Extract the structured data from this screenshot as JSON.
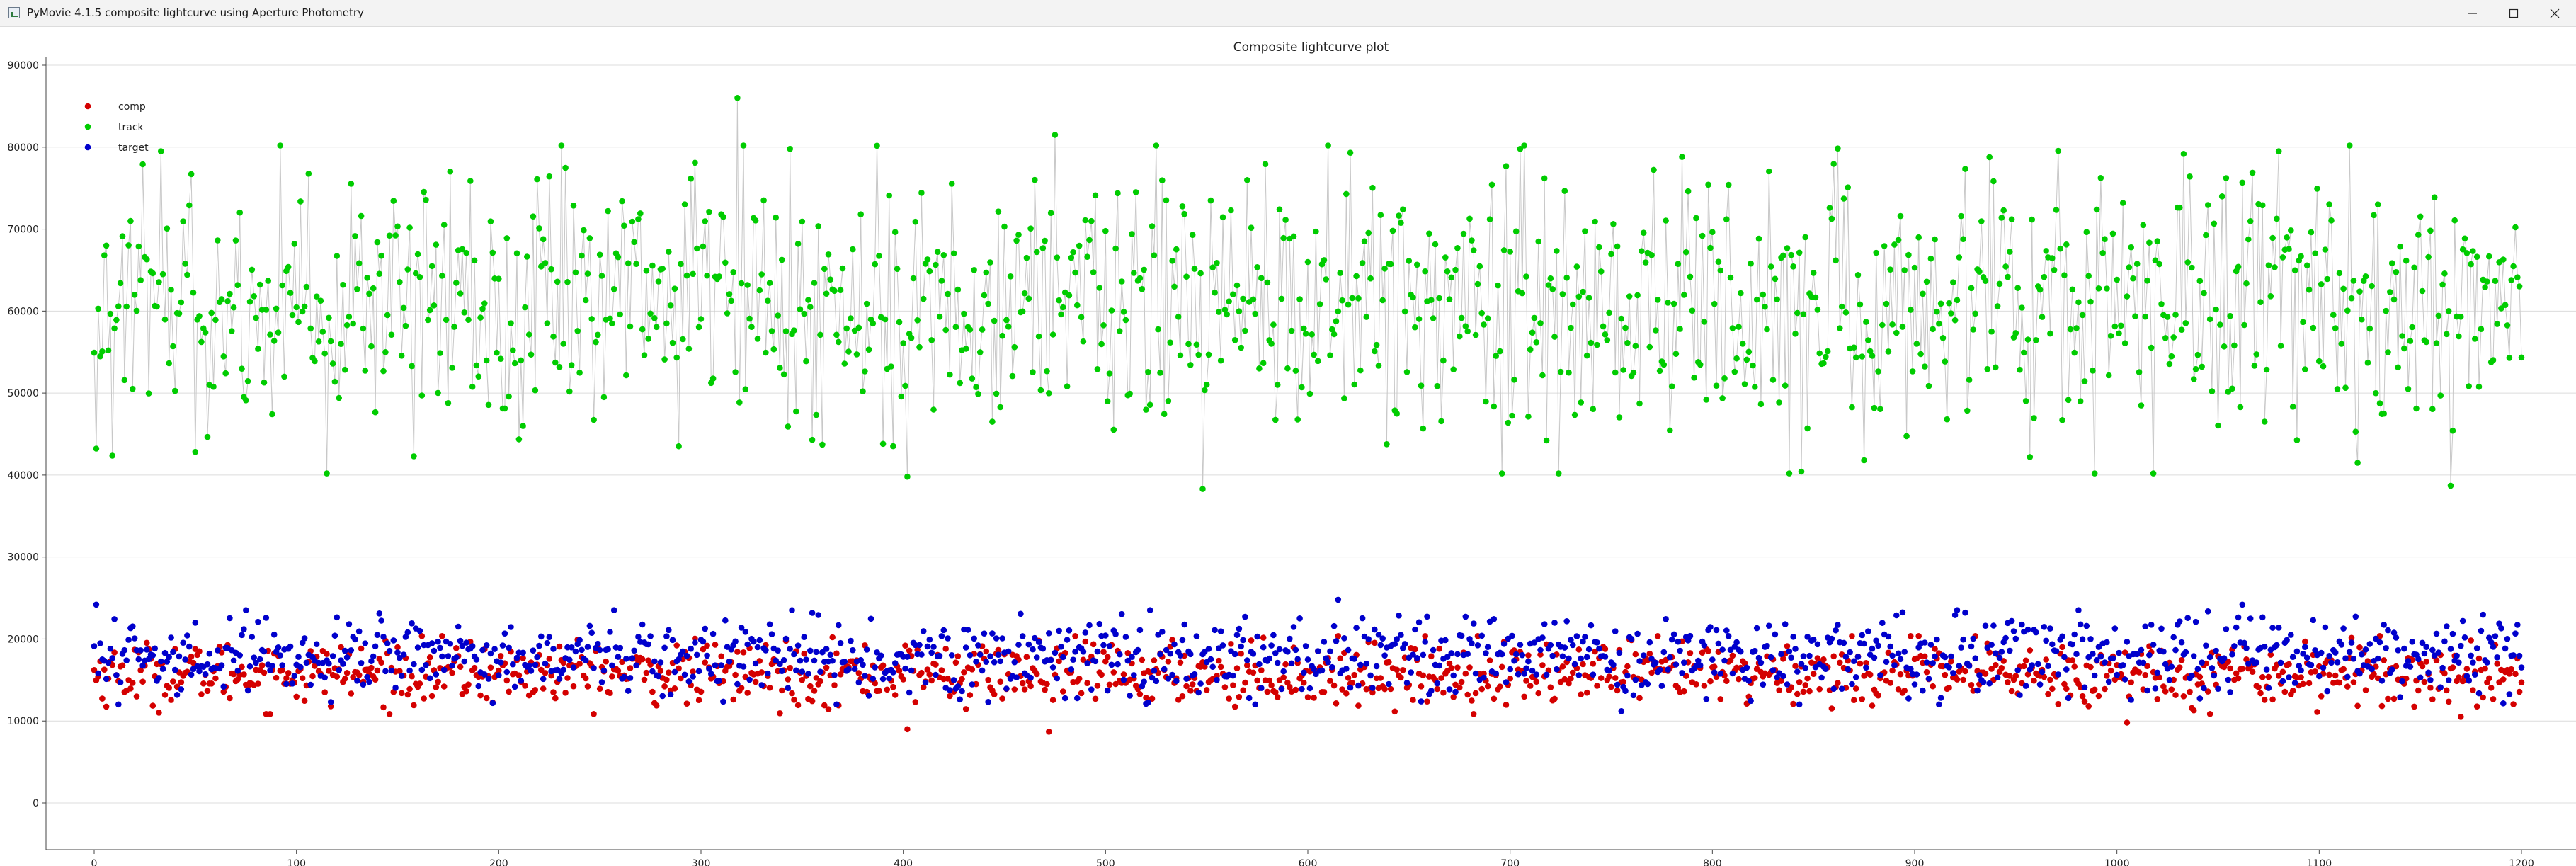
{
  "window": {
    "title": "PyMovie 4.1.5 composite lightcurve using Aperture Photometry",
    "controls": {
      "minimize": "minimize-icon",
      "maximize": "maximize-icon",
      "close": "close-icon"
    }
  },
  "chart_data": {
    "type": "scatter",
    "title": "Composite lightcurve plot",
    "xlabel": "",
    "ylabel": "",
    "xlim": [
      -4,
      1204
    ],
    "ylim": [
      -4000,
      90000
    ],
    "xticks": [
      0,
      100,
      200,
      300,
      400,
      500,
      600,
      700,
      800,
      900,
      1000,
      1100,
      1200
    ],
    "yticks": [
      0,
      10000,
      20000,
      30000,
      40000,
      50000,
      60000,
      70000,
      80000,
      90000
    ],
    "grid": "horizontal",
    "legend_position": "top-left",
    "series": [
      {
        "name": "comp",
        "color": "#d40000",
        "points": "markers",
        "mean": 15800,
        "sd": 1900,
        "x_start": 0,
        "x_end": 1200,
        "count": 1201,
        "notable_lows": [
          [
            402,
            9000
          ],
          [
            472,
            8700
          ],
          [
            1005,
            9800
          ],
          [
            1170,
            10500
          ]
        ]
      },
      {
        "name": "track",
        "color": "#00cc00",
        "points": "markers joined by a grey line",
        "mean": 61000,
        "sd": 8000,
        "x_start": 0,
        "x_end": 1200,
        "count": 1201,
        "notable_highs": [
          [
            318,
            86000
          ],
          [
            475,
            81500
          ],
          [
            33,
            79500
          ],
          [
            1080,
            79500
          ]
        ],
        "notable_lows": [
          [
            402,
            39800
          ],
          [
            548,
            38300
          ],
          [
            1165,
            38700
          ],
          [
            875,
            41800
          ]
        ]
      },
      {
        "name": "target",
        "color": "#0000cc",
        "points": "markers",
        "mean": 18000,
        "sd": 2300,
        "x_start": 0,
        "x_end": 1200,
        "count": 1201,
        "notable_highs": [
          [
            1,
            24200
          ],
          [
            615,
            24800
          ],
          [
            1062,
            24200
          ]
        ],
        "notable_lows": [
          [
            197,
            12200
          ],
          [
            520,
            12100
          ],
          [
            755,
            11200
          ]
        ]
      }
    ],
    "line_color": "#c8c8c8"
  }
}
